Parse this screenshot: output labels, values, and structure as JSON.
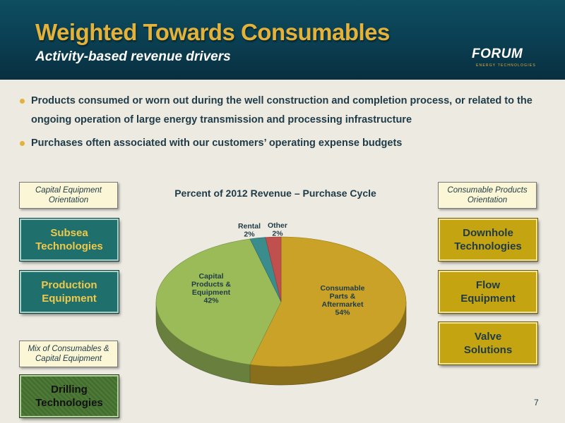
{
  "header": {
    "title": "Weighted Towards Consumables",
    "subtitle": "Activity-based revenue drivers",
    "logo_word": "FORUM",
    "logo_tagline": "ENERGY TECHNOLOGIES"
  },
  "bullets": [
    "Products consumed or worn out during the well construction and completion process, or related to the ongoing operation of large energy transmission and processing infrastructure",
    "Purchases often associated with our customers’ operating expense budgets"
  ],
  "left_column": {
    "header": "Capital Equipment Orientation",
    "segments": [
      "Subsea Technologies",
      "Production Equipment"
    ],
    "mix_header": "Mix of Consumables & Capital Equipment",
    "mix_segments": [
      "Drilling Technologies"
    ]
  },
  "right_column": {
    "header": "Consumable Products Orientation",
    "segments": [
      "Downhole Technologies",
      "Flow Equipment",
      "Valve Solutions"
    ]
  },
  "chart_data": {
    "type": "pie",
    "title": "Percent of 2012  Revenue – Purchase Cycle",
    "slices": [
      {
        "label": [
          "Consumable",
          "Parts &",
          "Aftermarket"
        ],
        "pct_label": "54%",
        "value": 54,
        "color": "#C9A227"
      },
      {
        "label": [
          "Capital",
          "Products &",
          "Equipment"
        ],
        "pct_label": "42%",
        "value": 42,
        "color": "#9BBB59"
      },
      {
        "label": [
          "Rental"
        ],
        "pct_label": "2%",
        "value": 2,
        "color": "#3B8C8C"
      },
      {
        "label": [
          "Other"
        ],
        "pct_label": "2%",
        "value": 2,
        "color": "#C0504D"
      }
    ],
    "legend": "none",
    "style": "3d"
  },
  "page_number": "7",
  "colors": {
    "header_bg": "#0A3E51",
    "title": "#E2B23A",
    "accent_teal": "#1F6F6C",
    "accent_gold": "#C5A412",
    "accent_green": "#4C7A36"
  }
}
